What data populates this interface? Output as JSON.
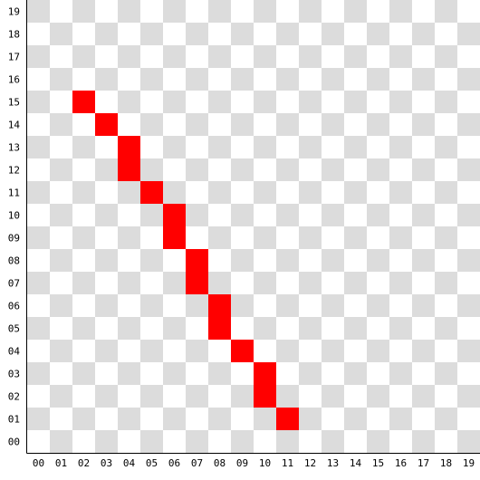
{
  "grid": {
    "columns": 20,
    "rows": 20,
    "x_labels": [
      "00",
      "01",
      "02",
      "03",
      "04",
      "05",
      "06",
      "07",
      "08",
      "09",
      "10",
      "11",
      "12",
      "13",
      "14",
      "15",
      "16",
      "17",
      "18",
      "19"
    ],
    "y_labels": [
      "00",
      "01",
      "02",
      "03",
      "04",
      "05",
      "06",
      "07",
      "08",
      "09",
      "10",
      "11",
      "12",
      "13",
      "14",
      "15",
      "16",
      "17",
      "18",
      "19"
    ],
    "colors": {
      "checker_light": "#ffffff",
      "checker_dark": "#dcdcdc",
      "filled": "#ff0000",
      "axis": "#000000"
    }
  },
  "filled_cells": [
    [
      2,
      15
    ],
    [
      3,
      14
    ],
    [
      4,
      13
    ],
    [
      4,
      12
    ],
    [
      5,
      11
    ],
    [
      6,
      10
    ],
    [
      6,
      9
    ],
    [
      7,
      8
    ],
    [
      7,
      7
    ],
    [
      8,
      6
    ],
    [
      8,
      5
    ],
    [
      9,
      4
    ],
    [
      10,
      3
    ],
    [
      10,
      2
    ],
    [
      11,
      1
    ]
  ]
}
